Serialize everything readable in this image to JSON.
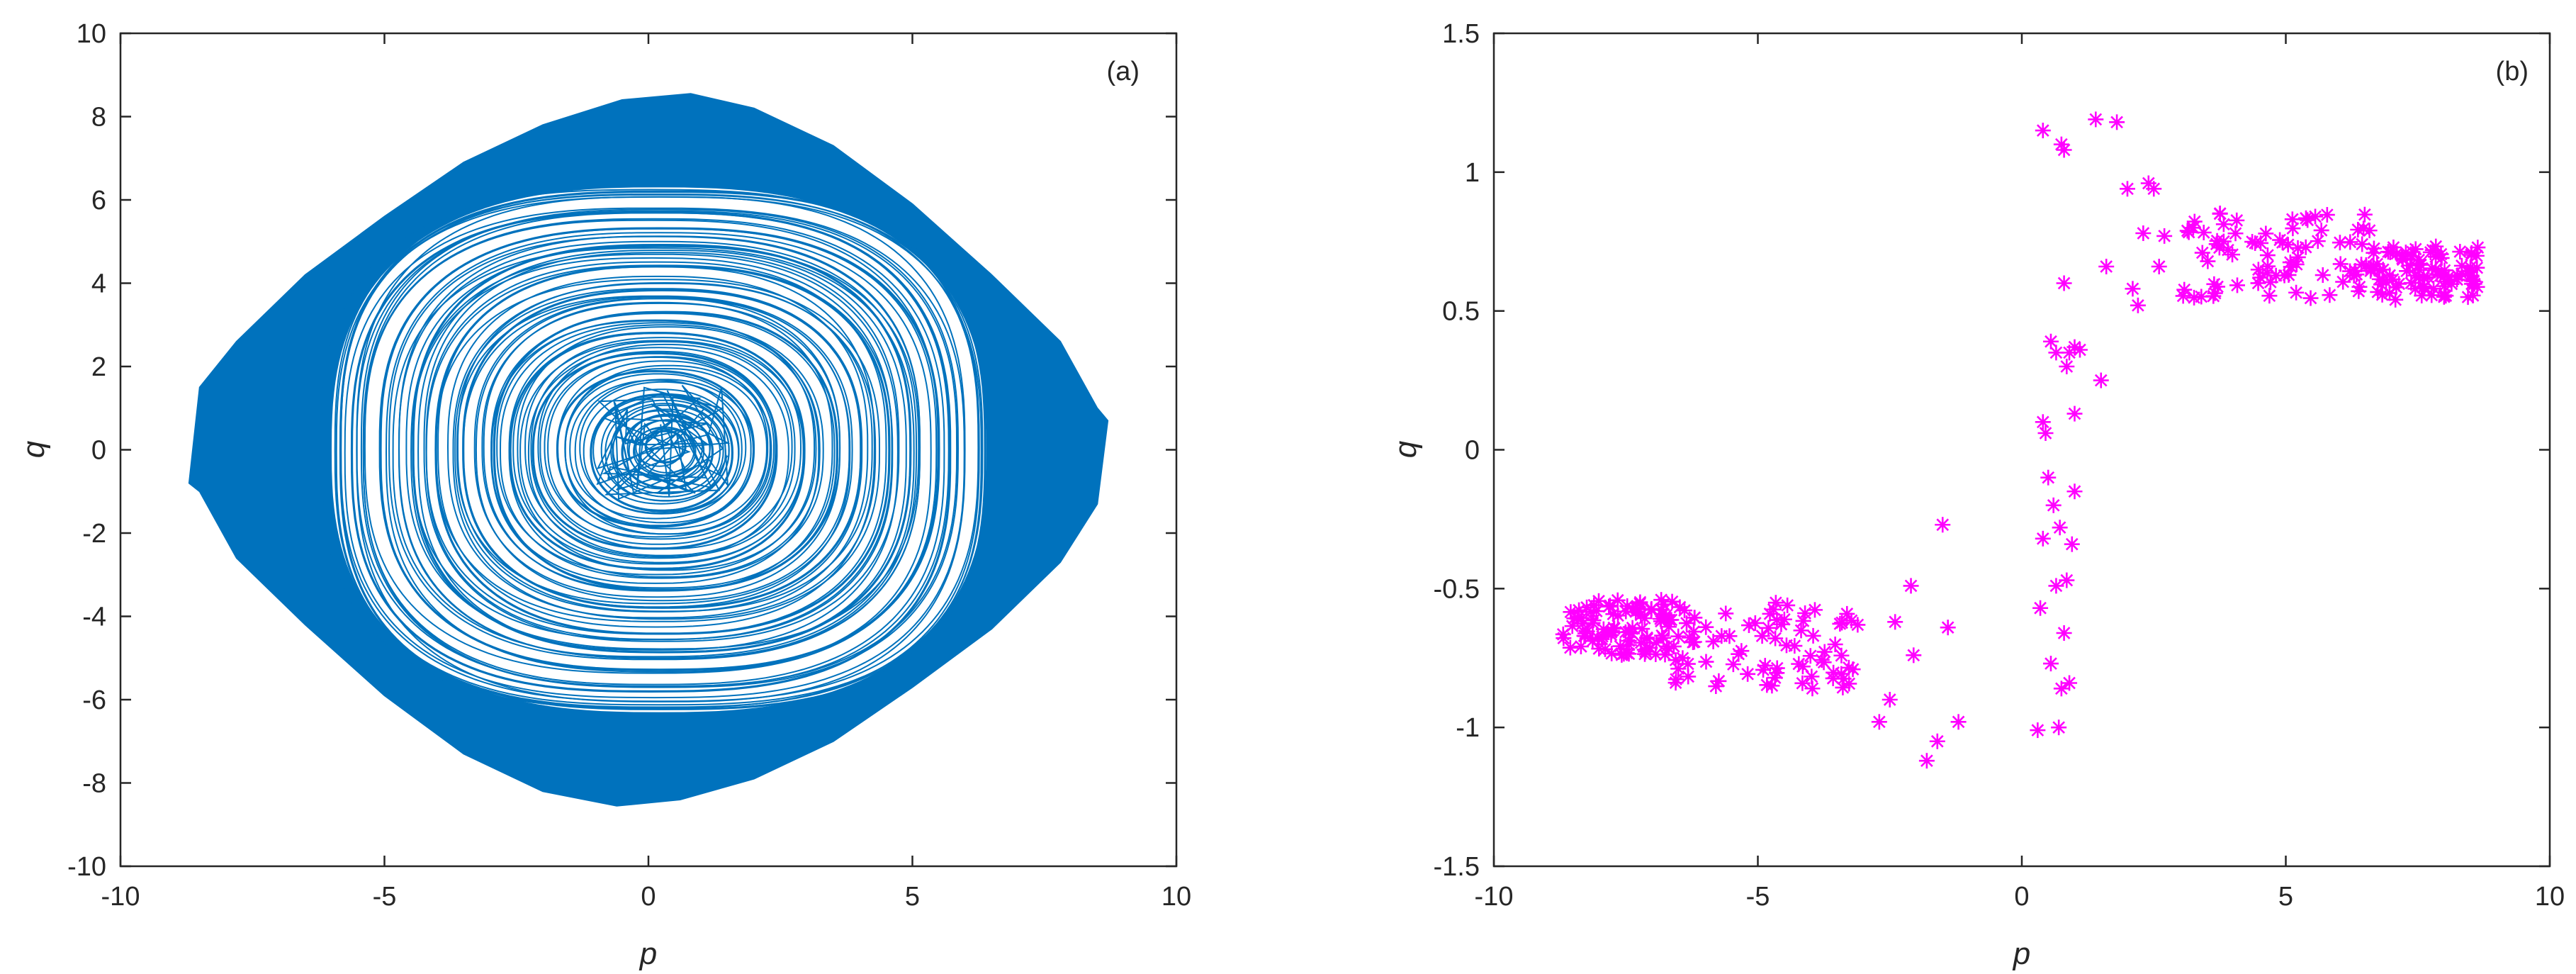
{
  "chart_data": [
    {
      "type": "line",
      "panel_label": "(a)",
      "xlabel": "p",
      "ylabel": "q",
      "xlim": [
        -10,
        10
      ],
      "ylim": [
        -10,
        10
      ],
      "xticks": [
        -10,
        -5,
        0,
        5,
        10
      ],
      "yticks": [
        -10,
        -8,
        -6,
        -4,
        -2,
        0,
        2,
        4,
        6,
        8,
        10
      ],
      "xtick_labels": [
        "-10",
        "-5",
        "0",
        "5",
        "10"
      ],
      "ytick_labels": [
        "-10",
        "-8",
        "-6",
        "-4",
        "-2",
        "0",
        "2",
        "4",
        "6",
        "8",
        "10"
      ],
      "grid": false,
      "color": "#0072BD",
      "series": [
        {
          "values": "trajectory spiralling outward from the origin to the envelope below",
          "outer_envelope": {
            "x": [
              -8.7,
              -8.5,
              -7.8,
              -6.5,
              -5,
              -3.5,
              -2,
              -0.5,
              0.8,
              2,
              3.5,
              5,
              6.5,
              7.8,
              8.5,
              8.7,
              8.5,
              7.8,
              6.5,
              5,
              3.5,
              2,
              0.6,
              -0.6,
              -2,
              -3.5,
              -5,
              -6.5,
              -7.8,
              -8.5,
              -8.7
            ],
            "y": [
              -0.8,
              1.5,
              2.6,
              4.2,
              5.6,
              6.9,
              7.8,
              8.4,
              8.55,
              8.2,
              7.3,
              5.9,
              4.2,
              2.6,
              1.0,
              0.7,
              -1.3,
              -2.7,
              -4.3,
              -5.7,
              -7.0,
              -7.9,
              -8.4,
              -8.55,
              -8.2,
              -7.3,
              -5.9,
              -4.2,
              -2.6,
              -1.0,
              -0.8
            ]
          },
          "inner_hole": {
            "p_half_width": 6.2,
            "q_half_height": 6.3
          },
          "core_tangle": {
            "p_range": [
              -1.0,
              1.6
            ],
            "q_range": [
              -1.2,
              1.6
            ]
          }
        }
      ]
    },
    {
      "type": "scatter",
      "panel_label": "(b)",
      "xlabel": "p",
      "ylabel": "q",
      "xlim": [
        -10,
        10
      ],
      "ylim": [
        -1.5,
        1.5
      ],
      "xticks": [
        -10,
        -5,
        0,
        5,
        10
      ],
      "yticks": [
        -1.5,
        -1,
        -0.5,
        0,
        0.5,
        1,
        1.5
      ],
      "xtick_labels": [
        "-10",
        "-5",
        "0",
        "5",
        "10"
      ],
      "ytick_labels": [
        "-1.5",
        "-1",
        "-0.5",
        "0",
        "0.5",
        "1",
        "1.5"
      ],
      "grid": false,
      "marker": "asterisk",
      "color": "#FF00FF",
      "series": [
        {
          "clusters": [
            {
              "p_range": [
                -8.7,
                -6.6
              ],
              "q_center": -0.64,
              "q_spread": 0.1,
              "count": 90
            },
            {
              "p_range": [
                -6.6,
                -3.0
              ],
              "q_center": -0.7,
              "q_spread": 0.16,
              "count": 80
            },
            {
              "p_range": [
                3.0,
                6.6
              ],
              "q_center": 0.7,
              "q_spread": 0.16,
              "count": 80
            },
            {
              "p_range": [
                6.6,
                8.7
              ],
              "q_center": 0.64,
              "q_spread": 0.1,
              "count": 90
            }
          ],
          "points": [
            [
              -2.7,
              -0.98
            ],
            [
              -2.1,
              -0.49
            ],
            [
              -2.05,
              -0.74
            ],
            [
              -1.8,
              -1.12
            ],
            [
              -1.6,
              -1.05
            ],
            [
              -1.5,
              -0.27
            ],
            [
              -1.4,
              -0.64
            ],
            [
              -1.2,
              -0.98
            ],
            [
              -2.4,
              -0.62
            ],
            [
              -2.5,
              -0.9
            ],
            [
              0.3,
              -1.01
            ],
            [
              0.35,
              -0.57
            ],
            [
              0.4,
              -0.32
            ],
            [
              0.45,
              0.06
            ],
            [
              0.5,
              -0.1
            ],
            [
              0.55,
              -0.77
            ],
            [
              0.6,
              -0.2
            ],
            [
              0.65,
              -0.49
            ],
            [
              0.7,
              -1.0
            ],
            [
              0.72,
              -0.28
            ],
            [
              0.75,
              -0.86
            ],
            [
              0.8,
              -0.66
            ],
            [
              0.85,
              -0.47
            ],
            [
              0.9,
              -0.84
            ],
            [
              0.95,
              -0.34
            ],
            [
              1.0,
              -0.15
            ],
            [
              0.4,
              0.1
            ],
            [
              0.55,
              0.39
            ],
            [
              0.65,
              0.35
            ],
            [
              0.8,
              0.6
            ],
            [
              0.85,
              0.3
            ],
            [
              0.9,
              0.35
            ],
            [
              1.0,
              0.37
            ],
            [
              1.1,
              0.36
            ],
            [
              0.4,
              1.15
            ],
            [
              0.75,
              1.1
            ],
            [
              0.8,
              1.08
            ],
            [
              1.0,
              0.13
            ],
            [
              1.4,
              1.19
            ],
            [
              1.5,
              0.25
            ],
            [
              1.6,
              0.66
            ],
            [
              1.8,
              1.18
            ],
            [
              2.0,
              0.94
            ],
            [
              2.1,
              0.58
            ],
            [
              2.2,
              0.52
            ],
            [
              2.3,
              0.78
            ],
            [
              2.4,
              0.96
            ],
            [
              2.5,
              0.94
            ],
            [
              2.6,
              0.66
            ],
            [
              2.7,
              0.77
            ]
          ]
        }
      ]
    }
  ]
}
